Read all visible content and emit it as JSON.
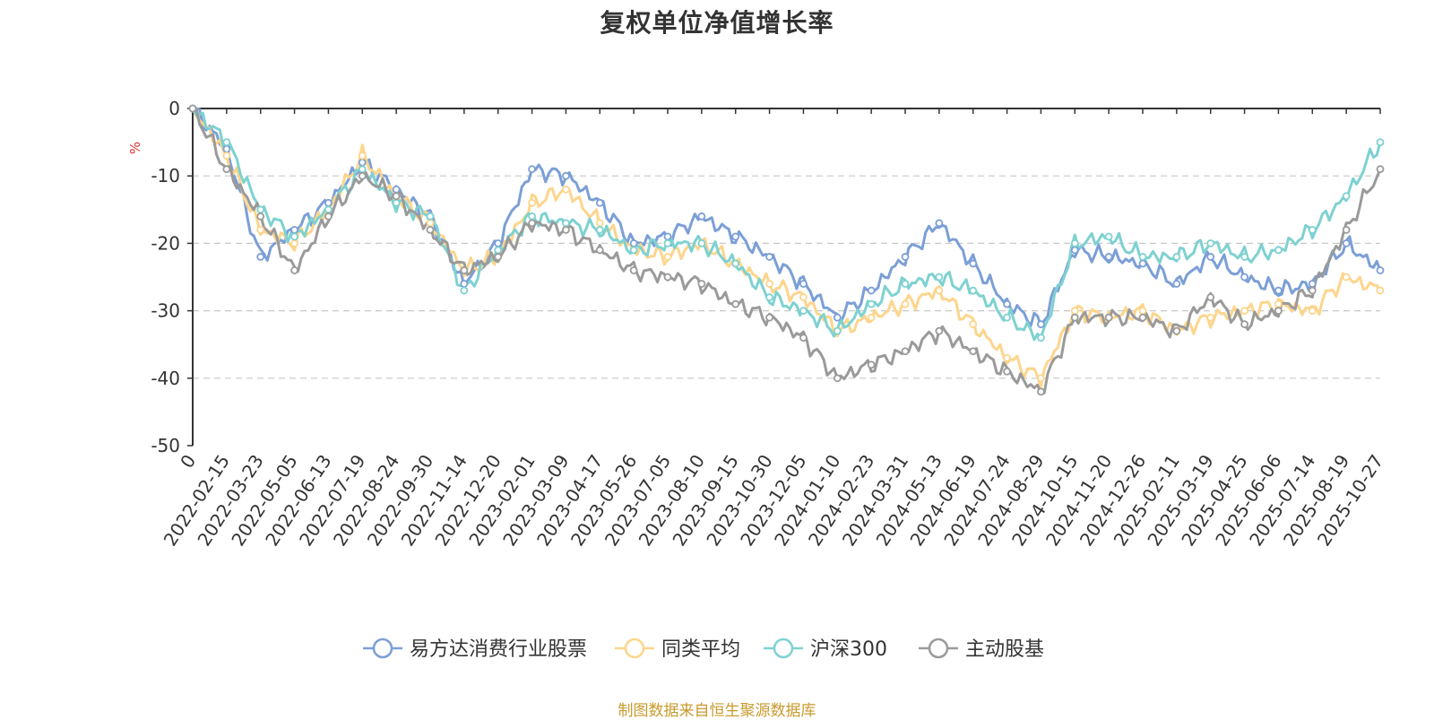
{
  "chart_data": {
    "type": "line",
    "title": "复权单位净值增长率",
    "ylabel": "%",
    "ylim": [
      -50,
      0
    ],
    "yticks": [
      0,
      -10,
      -20,
      -30,
      -40,
      -50
    ],
    "ytick_labels": [
      "0",
      "-10",
      "-20",
      "-30",
      "-40",
      "-50"
    ],
    "grid": true,
    "legend_position": "bottom-center",
    "categories": [
      "0",
      "2022-02-15",
      "2022-03-23",
      "2022-05-05",
      "2022-06-13",
      "2022-07-19",
      "2022-08-24",
      "2022-09-30",
      "2022-11-14",
      "2022-12-20",
      "2023-02-01",
      "2023-03-09",
      "2023-04-17",
      "2023-05-26",
      "2023-07-05",
      "2023-08-10",
      "2023-09-15",
      "2023-10-30",
      "2023-12-05",
      "2024-01-10",
      "2024-02-23",
      "2024-03-31",
      "2024-05-13",
      "2024-06-19",
      "2024-07-24",
      "2024-08-29",
      "2024-10-15",
      "2024-11-20",
      "2024-12-26",
      "2025-02-11",
      "2025-03-19",
      "2025-04-25",
      "2025-06-06",
      "2025-07-14",
      "2025-08-19",
      "2025-10-27"
    ],
    "series": [
      {
        "name": "易方达消费行业股票",
        "color": "#7b9fd6",
        "values": [
          0,
          -6,
          -22,
          -18,
          -14,
          -8,
          -12,
          -16,
          -26,
          -20,
          -9,
          -10,
          -14,
          -20,
          -19,
          -16,
          -19,
          -22,
          -26,
          -31,
          -27,
          -22,
          -17,
          -23,
          -29,
          -32,
          -21,
          -22,
          -23,
          -26,
          -22,
          -25,
          -27,
          -26,
          -20,
          -24
        ]
      },
      {
        "name": "同类平均",
        "color": "#fdd58c",
        "values": [
          0,
          -7,
          -18,
          -20,
          -15,
          -7,
          -13,
          -17,
          -24,
          -22,
          -14,
          -12,
          -17,
          -21,
          -22,
          -20,
          -23,
          -26,
          -28,
          -33,
          -31,
          -29,
          -27,
          -32,
          -37,
          -40,
          -30,
          -31,
          -30,
          -33,
          -31,
          -30,
          -29,
          -30,
          -25,
          -27
        ]
      },
      {
        "name": "沪深300",
        "color": "#7fd1d1",
        "values": [
          0,
          -5,
          -15,
          -19,
          -15,
          -9,
          -14,
          -16,
          -27,
          -21,
          -16,
          -17,
          -18,
          -21,
          -20,
          -20,
          -23,
          -28,
          -30,
          -33,
          -29,
          -26,
          -25,
          -27,
          -31,
          -34,
          -20,
          -19,
          -22,
          -22,
          -20,
          -22,
          -21,
          -18,
          -13,
          -5
        ]
      },
      {
        "name": "主动股基",
        "color": "#9a9a9a",
        "values": [
          0,
          -9,
          -16,
          -24,
          -16,
          -10,
          -13,
          -18,
          -24,
          -22,
          -17,
          -18,
          -21,
          -24,
          -25,
          -26,
          -29,
          -31,
          -34,
          -40,
          -38,
          -36,
          -33,
          -36,
          -39,
          -42,
          -31,
          -31,
          -31,
          -33,
          -28,
          -32,
          -30,
          -27,
          -18,
          -9
        ]
      }
    ]
  },
  "source_text": "制图数据来自恒生聚源数据库"
}
